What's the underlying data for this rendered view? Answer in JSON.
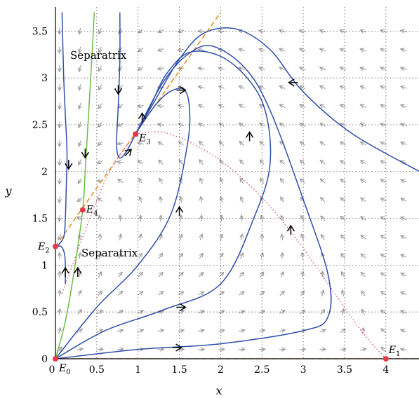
{
  "chart_data": {
    "type": "line",
    "title": "",
    "xlabel": "x",
    "ylabel": "y",
    "xlim": [
      0,
      4.45
    ],
    "ylim": [
      0,
      3.7
    ],
    "x_ticks": [
      "0",
      "0.5",
      "1",
      "1.5",
      "2",
      "2.5",
      "3",
      "3.5",
      "4"
    ],
    "y_ticks": [
      "0",
      "0.5",
      "1",
      "1.5",
      "2",
      "2.5",
      "3",
      "3.5"
    ],
    "x_tick_values": [
      0,
      0.5,
      1,
      1.5,
      2,
      2.5,
      3,
      3.5,
      4
    ],
    "y_tick_values": [
      0,
      0.5,
      1,
      1.5,
      2,
      2.5,
      3,
      3.5
    ],
    "grid": true,
    "grid_style": "dotted",
    "colors": {
      "trajectory": "#2f4fa8",
      "separatrix": "#6dbb45",
      "nullcline_dashed": "#e8902f",
      "nullcline_dotted": "#e0507a",
      "equilibrium": "#e5384a",
      "vector_field": "#9a9a9a",
      "direction_arrow": "#000000"
    },
    "equilibria": [
      {
        "name": "E0",
        "label_main": "E",
        "label_sub": "0",
        "x": 0,
        "y": 0
      },
      {
        "name": "E1",
        "label_main": "E",
        "label_sub": "1",
        "x": 4,
        "y": 0
      },
      {
        "name": "E2",
        "label_main": "E",
        "label_sub": "2",
        "x": 0,
        "y": 1.2
      },
      {
        "name": "E3",
        "label_main": "E",
        "label_sub": "3",
        "x": 0.97,
        "y": 2.4
      },
      {
        "name": "E4",
        "label_main": "E",
        "label_sub": "4",
        "x": 0.33,
        "y": 1.59
      }
    ],
    "annotations": [
      {
        "text": "Separatrix",
        "x": 0.18,
        "y": 3.2
      },
      {
        "text": "Separatrix",
        "x": 0.32,
        "y": 1.1
      }
    ],
    "separatrix": [
      [
        0,
        0
      ],
      [
        0.12,
        0.4
      ],
      [
        0.22,
        0.9
      ],
      [
        0.33,
        1.59
      ],
      [
        0.36,
        2.0
      ],
      [
        0.4,
        2.6
      ],
      [
        0.44,
        3.2
      ],
      [
        0.47,
        3.7
      ]
    ],
    "nullclines": [
      {
        "style": "dashed",
        "points": [
          [
            0,
            1.2
          ],
          [
            2.0,
            3.7
          ]
        ]
      },
      {
        "style": "dashed",
        "points": [
          [
            0,
            0
          ],
          [
            4.45,
            0
          ]
        ]
      },
      {
        "style": "dotted",
        "points": [
          [
            0.97,
            2.4
          ],
          [
            1.3,
            2.42
          ],
          [
            1.7,
            2.28
          ],
          [
            2.1,
            2.05
          ],
          [
            2.5,
            1.72
          ],
          [
            2.9,
            1.3
          ],
          [
            3.3,
            0.8
          ],
          [
            3.7,
            0.3
          ],
          [
            4.0,
            0
          ]
        ]
      },
      {
        "style": "dotted",
        "points": [
          [
            0.08,
            0.7
          ],
          [
            0.6,
            1.9
          ],
          [
            0.97,
            2.4
          ]
        ]
      }
    ],
    "trajectories": [
      {
        "points": [
          [
            0.08,
            3.7
          ],
          [
            0.1,
            3.0
          ],
          [
            0.12,
            2.6
          ],
          [
            0.14,
            2.2
          ],
          [
            0.13,
            1.8
          ],
          [
            0.12,
            1.5
          ],
          [
            0.1,
            1.3
          ],
          [
            0.02,
            1.2
          ]
        ]
      },
      {
        "points": [
          [
            0.12,
            0.8
          ],
          [
            0.12,
            1.0
          ],
          [
            0.11,
            1.12
          ],
          [
            0.07,
            1.2
          ],
          [
            0.02,
            1.2
          ]
        ]
      },
      {
        "points": [
          [
            0.78,
            3.7
          ],
          [
            0.78,
            3.2
          ],
          [
            0.76,
            2.7
          ],
          [
            0.74,
            2.3
          ],
          [
            0.77,
            2.15
          ],
          [
            0.85,
            2.2
          ],
          [
            0.97,
            2.4
          ]
        ]
      },
      {
        "points": [
          [
            0,
            0
          ],
          [
            0.5,
            0.55
          ],
          [
            1.0,
            1.0
          ],
          [
            1.4,
            1.55
          ],
          [
            1.6,
            2.3
          ],
          [
            1.62,
            2.7
          ],
          [
            1.55,
            2.88
          ],
          [
            1.38,
            2.85
          ],
          [
            1.22,
            2.72
          ],
          [
            1.08,
            2.55
          ],
          [
            0.97,
            2.4
          ]
        ]
      },
      {
        "points": [
          [
            0,
            0
          ],
          [
            0.6,
            0.3
          ],
          [
            1.3,
            0.52
          ],
          [
            2.0,
            0.8
          ],
          [
            2.4,
            1.5
          ],
          [
            2.6,
            2.1
          ],
          [
            2.5,
            2.75
          ],
          [
            2.1,
            3.18
          ],
          [
            1.65,
            3.28
          ],
          [
            1.35,
            3.05
          ],
          [
            1.15,
            2.7
          ],
          [
            0.97,
            2.4
          ]
        ]
      },
      {
        "points": [
          [
            0,
            0
          ],
          [
            1.0,
            0.1
          ],
          [
            2.0,
            0.16
          ],
          [
            3.0,
            0.3
          ],
          [
            3.3,
            0.45
          ],
          [
            3.3,
            0.9
          ],
          [
            3.0,
            1.7
          ],
          [
            2.6,
            2.65
          ],
          [
            2.3,
            3.1
          ],
          [
            1.9,
            3.34
          ],
          [
            1.6,
            3.25
          ],
          [
            1.3,
            2.95
          ],
          [
            0.97,
            2.4
          ]
        ]
      },
      {
        "points": [
          [
            4.45,
            1.98
          ],
          [
            3.6,
            2.4
          ],
          [
            3.0,
            2.85
          ],
          [
            2.6,
            3.3
          ],
          [
            2.2,
            3.52
          ],
          [
            1.8,
            3.48
          ],
          [
            1.5,
            3.2
          ],
          [
            1.2,
            2.75
          ],
          [
            0.97,
            2.4
          ]
        ]
      }
    ],
    "direction_arrows": [
      {
        "x": 0.16,
        "y": 2.05,
        "dir": "down"
      },
      {
        "x": 0.76,
        "y": 2.85,
        "dir": "down"
      },
      {
        "x": 0.36,
        "y": 2.17,
        "dir": "down"
      },
      {
        "x": 0.12,
        "y": 0.95,
        "dir": "up"
      },
      {
        "x": 0.27,
        "y": 0.95,
        "dir": "up"
      },
      {
        "x": 0.9,
        "y": 2.22,
        "dir": "upright"
      },
      {
        "x": 1.05,
        "y": 2.6,
        "dir": "up"
      },
      {
        "x": 1.5,
        "y": 1.6,
        "dir": "up"
      },
      {
        "x": 1.55,
        "y": 2.87,
        "dir": "right"
      },
      {
        "x": 1.55,
        "y": 0.55,
        "dir": "right"
      },
      {
        "x": 2.35,
        "y": 2.4,
        "dir": "up"
      },
      {
        "x": 2.85,
        "y": 1.4,
        "dir": "up"
      },
      {
        "x": 1.5,
        "y": 0.12,
        "dir": "right"
      },
      {
        "x": 2.85,
        "y": 2.95,
        "dir": "left"
      }
    ]
  }
}
